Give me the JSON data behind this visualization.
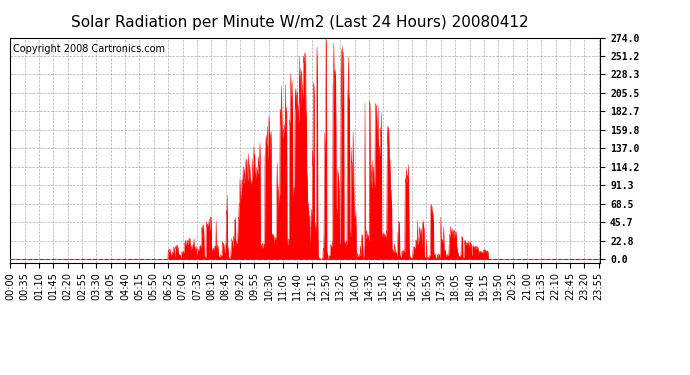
{
  "title": "Solar Radiation per Minute W/m2 (Last 24 Hours) 20080412",
  "copyright": "Copyright 2008 Cartronics.com",
  "yticks": [
    0.0,
    22.8,
    45.7,
    68.5,
    91.3,
    114.2,
    137.0,
    159.8,
    182.7,
    205.5,
    228.3,
    251.2,
    274.0
  ],
  "ymax": 274.0,
  "ymin": 0.0,
  "bar_color": "#FF0000",
  "background_color": "#FFFFFF",
  "grid_color": "#999999",
  "baseline_color": "#FF0000",
  "title_fontsize": 11,
  "copyright_fontsize": 7,
  "tick_fontsize": 7,
  "tick_interval_minutes": 35
}
